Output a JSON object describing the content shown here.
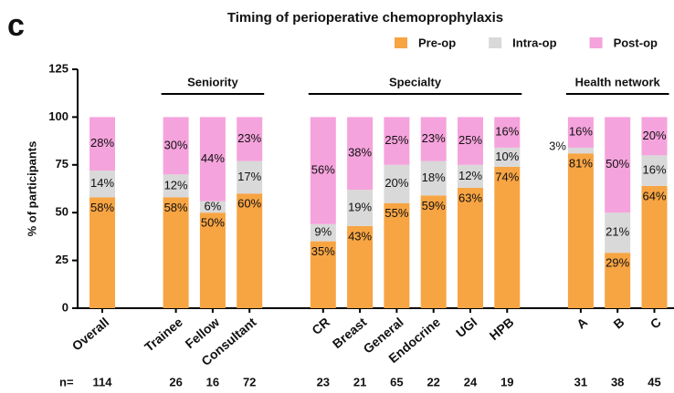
{
  "chart_data": {
    "type": "stacked_bar",
    "panel_label": "c",
    "title": "Timing of perioperative chemoprophylaxis",
    "y_label": "% of participants",
    "categories": [
      "Overall",
      null,
      "Trainee",
      "Fellow",
      "Consultant",
      null,
      "CR",
      "Breast",
      "General",
      "Endocrine",
      "UGI",
      "HPB",
      null,
      "A",
      "B",
      "C"
    ],
    "series": [
      {
        "name": "Pre-op",
        "color": "#f7a443",
        "values": [
          58,
          null,
          58,
          50,
          60,
          null,
          35,
          43,
          55,
          59,
          63,
          74,
          null,
          81,
          29,
          64
        ],
        "value_labels": [
          "58%",
          null,
          "58%",
          "50%",
          "60%",
          null,
          "35%",
          "43%",
          "55%",
          "59%",
          "63%",
          "74%",
          null,
          "81%",
          "29%",
          "64%"
        ]
      },
      {
        "name": "Intra-op",
        "color": "#d9d9d9",
        "values": [
          14,
          null,
          12,
          6,
          17,
          null,
          9,
          19,
          20,
          18,
          12,
          10,
          null,
          3,
          21,
          16
        ],
        "value_labels": [
          "14%",
          null,
          "12%",
          "6%",
          "17%",
          null,
          "9%",
          "19%",
          "20%",
          "18%",
          "12%",
          "10%",
          null,
          "3%",
          "21%",
          "16%"
        ]
      },
      {
        "name": "Post-op",
        "color": "#f5a3dc",
        "values": [
          28,
          null,
          30,
          44,
          23,
          null,
          56,
          38,
          25,
          23,
          25,
          16,
          null,
          16,
          50,
          20
        ],
        "value_labels": [
          "28%",
          null,
          "30%",
          "44%",
          "23%",
          null,
          "56%",
          "38%",
          "25%",
          "23%",
          "25%",
          "16%",
          null,
          "16%",
          "50%",
          "20%"
        ]
      }
    ],
    "groups": [
      {
        "label": "Seniority",
        "categories": [
          "Trainee",
          "Fellow",
          "Consultant"
        ]
      },
      {
        "label": "Specialty",
        "categories": [
          "CR",
          "Breast",
          "General",
          "Endocrine",
          "UGI",
          "HPB"
        ]
      },
      {
        "label": "Health network",
        "categories": [
          "A",
          "B",
          "C"
        ]
      }
    ],
    "n_label": "n=",
    "n": [
      114,
      null,
      26,
      16,
      72,
      null,
      23,
      21,
      65,
      22,
      24,
      19,
      null,
      31,
      38,
      45
    ],
    "ylim": [
      0,
      125
    ],
    "yticks": [
      0,
      25,
      50,
      75,
      100,
      125
    ],
    "legend": "top-right"
  }
}
